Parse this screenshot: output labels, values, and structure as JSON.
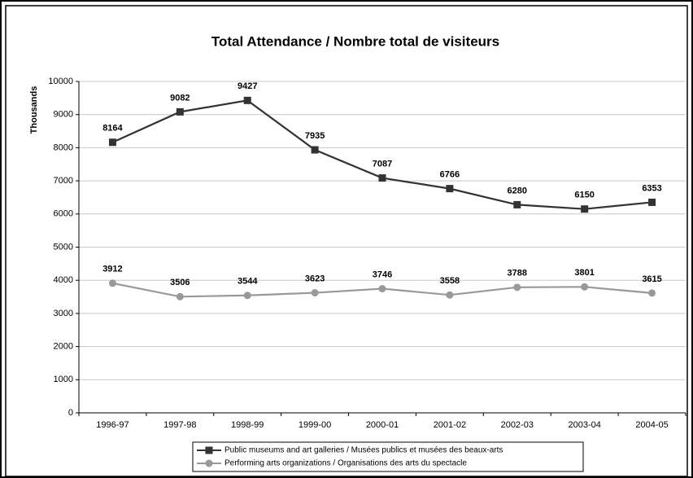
{
  "chart_data": {
    "type": "line",
    "title": "Total Attendance / Nombre total de visiteurs",
    "y_label": "Thousands",
    "categories": [
      "1996-97",
      "1997-98",
      "1998-99",
      "1999-00",
      "2000-01",
      "2001-02",
      "2002-03",
      "2003-04",
      "2004-05"
    ],
    "series": [
      {
        "name": "Public museums and art galleries / Musées publics et musées des beaux-arts",
        "color": "#333333",
        "marker": "square",
        "values": [
          8164,
          9082,
          9427,
          7935,
          7087,
          6766,
          6280,
          6150,
          6353
        ]
      },
      {
        "name": "Performing arts organizations / Organisations des arts du spectacle",
        "color": "#999999",
        "marker": "circle",
        "values": [
          3912,
          3506,
          3544,
          3623,
          3746,
          3558,
          3788,
          3801,
          3615
        ]
      }
    ],
    "ylim": [
      0,
      10000
    ],
    "yticks": [
      0,
      1000,
      2000,
      3000,
      4000,
      5000,
      6000,
      7000,
      8000,
      9000,
      10000
    ],
    "grid": true,
    "legend": "bottom"
  }
}
